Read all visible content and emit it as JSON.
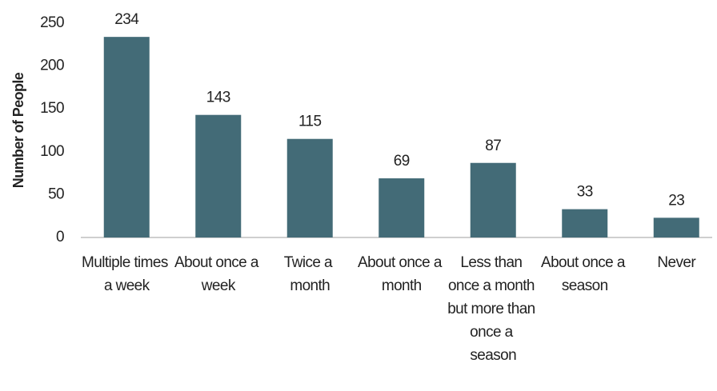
{
  "chart_data": {
    "type": "bar",
    "y_label": "Number of People",
    "categories": [
      "Multiple times a week",
      "About once a week",
      "Twice a month",
      "About once a month",
      "Less than once a month but more than once a season",
      "About once a season",
      "Never"
    ],
    "values": [
      234,
      143,
      115,
      69,
      87,
      33,
      23
    ],
    "color": "#436b77",
    "ylim": [
      0,
      250
    ],
    "yticks": [
      0,
      50,
      100,
      150,
      200,
      250
    ],
    "grid": false
  }
}
